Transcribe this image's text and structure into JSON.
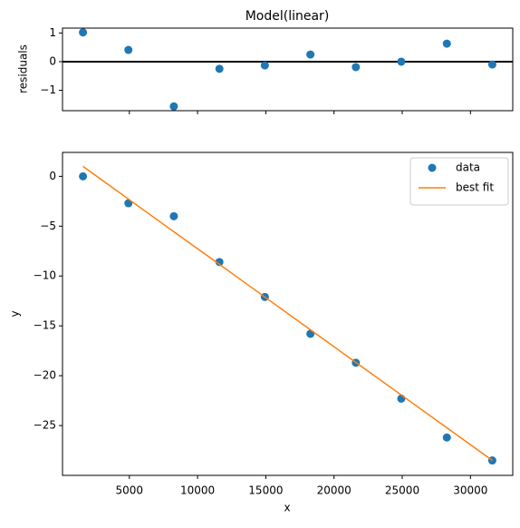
{
  "chart_data": [
    {
      "type": "scatter",
      "title": "Model(linear)",
      "ylabel": "residuals",
      "x": [
        1600,
        4930,
        8260,
        11600,
        14930,
        18270,
        21600,
        24930,
        28270,
        31600
      ],
      "series": [
        {
          "style": "marker",
          "color": "#1f77b4",
          "values": [
            1.02,
            0.41,
            -1.56,
            -0.25,
            -0.13,
            0.25,
            -0.19,
            0.0,
            0.63,
            -0.1
          ]
        }
      ],
      "hline": 0,
      "xlim": [
        100,
        33100
      ],
      "ylim": [
        -1.71,
        1.17
      ],
      "xticks": [
        5000,
        10000,
        15000,
        20000,
        25000,
        30000
      ],
      "yticks": [
        {
          "value": -1,
          "label": "−1"
        },
        0,
        1
      ]
    },
    {
      "type": "scatter",
      "xlabel": "x",
      "ylabel": "y",
      "x": [
        1600,
        4930,
        8260,
        11600,
        14930,
        18270,
        21600,
        24930,
        28270,
        31600
      ],
      "series": [
        {
          "name": "data",
          "style": "marker",
          "color": "#1f77b4",
          "values": [
            0.0,
            -2.7,
            -4.0,
            -8.6,
            -12.1,
            -15.8,
            -18.7,
            -22.3,
            -26.2,
            -28.5
          ]
        },
        {
          "name": "best fit",
          "style": "line",
          "color": "#ff7f0e",
          "values": [
            1.0,
            -2.28,
            -5.56,
            -8.83,
            -12.11,
            -15.39,
            -18.67,
            -21.94,
            -25.22,
            -28.5
          ]
        }
      ],
      "legend": "upper right",
      "xlim": [
        100,
        33100
      ],
      "ylim": [
        -30,
        2.4
      ],
      "xticks": [
        5000,
        10000,
        15000,
        20000,
        25000,
        30000
      ],
      "yticks": [
        0,
        {
          "value": -5,
          "label": "−5"
        },
        {
          "value": -10,
          "label": "−10"
        },
        {
          "value": -15,
          "label": "−15"
        },
        {
          "value": -20,
          "label": "−20"
        },
        {
          "value": -25,
          "label": "−25"
        }
      ]
    }
  ]
}
